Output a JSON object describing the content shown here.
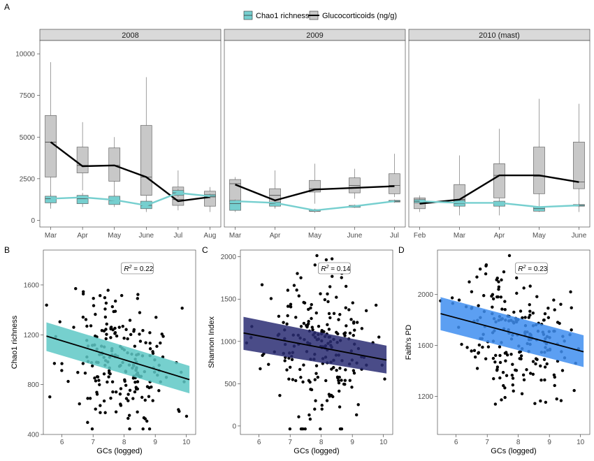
{
  "chart_data": [
    {
      "panel": "A",
      "type": "box",
      "legend": {
        "placement": "top-center",
        "entries": [
          {
            "label": "Chao1 richness",
            "color": "#76CFCF"
          },
          {
            "label": "Glucocorticoids (ng/g)",
            "color": "#C8C8C8"
          }
        ]
      },
      "ylim": [
        -400,
        10800
      ],
      "yticks": [
        0,
        2500,
        5000,
        7500,
        10000
      ],
      "facets": [
        {
          "title": "2008",
          "months": [
            "Mar",
            "Apr",
            "May",
            "June",
            "Jul",
            "Aug"
          ],
          "gc_boxes": [
            {
              "lo": 700,
              "q1": 2600,
              "med": 4700,
              "q3": 6300,
              "hi": 9500
            },
            {
              "lo": 1800,
              "q1": 2850,
              "med": 3300,
              "q3": 4400,
              "hi": 5900
            },
            {
              "lo": 1400,
              "q1": 2350,
              "med": 3300,
              "q3": 4350,
              "hi": 5000
            },
            {
              "lo": 500,
              "q1": 1500,
              "med": 2600,
              "q3": 5700,
              "hi": 8600
            },
            {
              "lo": 600,
              "q1": 900,
              "med": 1250,
              "q3": 2000,
              "hi": 3000
            },
            {
              "lo": 500,
              "q1": 850,
              "med": 1400,
              "q3": 1750,
              "hi": 2000
            }
          ],
          "gc_mean": [
            4700,
            3250,
            3300,
            2600,
            1150,
            1400
          ],
          "chao_boxes": [
            {
              "lo": 900,
              "q1": 1050,
              "med": 1300,
              "q3": 1450,
              "hi": 1600
            },
            {
              "lo": 800,
              "q1": 1000,
              "med": 1300,
              "q3": 1500,
              "hi": 1650
            },
            {
              "lo": 800,
              "q1": 950,
              "med": 1200,
              "q3": 1450,
              "hi": 1550
            },
            {
              "lo": 600,
              "q1": 700,
              "med": 900,
              "q3": 1150,
              "hi": 1250
            },
            {
              "lo": 1400,
              "q1": 1500,
              "med": 1650,
              "q3": 1800,
              "hi": 1900
            },
            {
              "lo": 1300,
              "q1": 1400,
              "med": 1450,
              "q3": 1550,
              "hi": 1600
            }
          ],
          "chao_mean": [
            1300,
            1380,
            1230,
            900,
            1650,
            1450
          ]
        },
        {
          "title": "2009",
          "months": [
            "Mar",
            "Apr",
            "May",
            "June",
            "Jul"
          ],
          "gc_boxes": [
            {
              "lo": 900,
              "q1": 1100,
              "med": 2200,
              "q3": 2450,
              "hi": 2600
            },
            {
              "lo": 700,
              "q1": 1050,
              "med": 1500,
              "q3": 1900,
              "hi": 3000
            },
            {
              "lo": 1000,
              "q1": 1700,
              "med": 1900,
              "q3": 2400,
              "hi": 3400
            },
            {
              "lo": 1300,
              "q1": 1650,
              "med": 2100,
              "q3": 2550,
              "hi": 3100
            },
            {
              "lo": 1400,
              "q1": 1600,
              "med": 2100,
              "q3": 2800,
              "hi": 4000
            }
          ],
          "gc_mean": [
            2150,
            1200,
            1850,
            1950,
            2050
          ],
          "chao_boxes": [
            {
              "lo": 500,
              "q1": 600,
              "med": 1000,
              "q3": 1200,
              "hi": 1250
            },
            {
              "lo": 750,
              "q1": 850,
              "med": 1000,
              "q3": 1100,
              "hi": 1200
            },
            {
              "lo": 450,
              "q1": 550,
              "med": 550,
              "q3": 650,
              "hi": 700
            },
            {
              "lo": 750,
              "q1": 780,
              "med": 850,
              "q3": 900,
              "hi": 950
            },
            {
              "lo": 1050,
              "q1": 1100,
              "med": 1150,
              "q3": 1200,
              "hi": 1250
            }
          ],
          "chao_mean": [
            1150,
            1050,
            600,
            850,
            1150
          ]
        },
        {
          "title": "2010 (mast)",
          "months": [
            "Feb",
            "Mar",
            "Apr",
            "May",
            "June"
          ],
          "gc_boxes": [
            {
              "lo": 500,
              "q1": 700,
              "med": 1200,
              "q3": 1350,
              "hi": 1500
            },
            {
              "lo": 300,
              "q1": 1100,
              "med": 1250,
              "q3": 2150,
              "hi": 3900
            },
            {
              "lo": 300,
              "q1": 1350,
              "med": 2700,
              "q3": 3400,
              "hi": 5500
            },
            {
              "lo": 900,
              "q1": 1600,
              "med": 2650,
              "q3": 4400,
              "hi": 7300
            },
            {
              "lo": 500,
              "q1": 1900,
              "med": 2300,
              "q3": 4700,
              "hi": 7000
            }
          ],
          "gc_mean": [
            1000,
            1250,
            2700,
            2700,
            2300
          ],
          "chao_boxes": [
            {
              "lo": 1000,
              "q1": 1050,
              "med": 1150,
              "q3": 1250,
              "hi": 1350
            },
            {
              "lo": 700,
              "q1": 850,
              "med": 1000,
              "q3": 1200,
              "hi": 1300
            },
            {
              "lo": 750,
              "q1": 850,
              "med": 1050,
              "q3": 1150,
              "hi": 1200
            },
            {
              "lo": 500,
              "q1": 550,
              "med": 700,
              "q3": 800,
              "hi": 900
            },
            {
              "lo": 800,
              "q1": 850,
              "med": 900,
              "q3": 950,
              "hi": 1000
            }
          ],
          "chao_mean": [
            1150,
            1050,
            1050,
            800,
            900
          ]
        }
      ]
    },
    {
      "panel": "B",
      "type": "scatter",
      "xlabel": "GCs (logged)",
      "ylabel": "Chao1 richness",
      "xlim": [
        5.4,
        10.3
      ],
      "ylim": [
        400,
        1880
      ],
      "xticks": [
        6,
        7,
        8,
        9,
        10
      ],
      "yticks": [
        400,
        800,
        1200,
        1600
      ],
      "annotation": "= 0.22",
      "fit": {
        "x0": 5.5,
        "x1": 10.1,
        "y0": 1190,
        "y1": 840
      },
      "band": {
        "upper0": 1300,
        "upper1": 950,
        "lower0": 1070,
        "lower1": 730
      },
      "band_color": "#5EC8C6",
      "n_points": 220,
      "seed": 11,
      "y_sd": 280
    },
    {
      "panel": "C",
      "type": "scatter",
      "xlabel": "GCs (logged)",
      "ylabel": "Shannon Index",
      "xlim": [
        5.4,
        10.3
      ],
      "ylim": [
        -100,
        2080
      ],
      "xticks": [
        6,
        7,
        8,
        9,
        10
      ],
      "yticks": [
        0,
        500,
        1000,
        1500,
        2000
      ],
      "annotation": "= 0.14",
      "fit": {
        "x0": 5.5,
        "x1": 10.1,
        "y0": 1100,
        "y1": 780
      },
      "band": {
        "upper0": 1290,
        "upper1": 950,
        "lower0": 900,
        "lower1": 620
      },
      "band_color": "#2A2D73",
      "n_points": 220,
      "seed": 23,
      "y_sd": 420
    },
    {
      "panel": "D",
      "type": "scatter",
      "xlabel": "GCs (logged)",
      "ylabel": "Faith's PD",
      "xlim": [
        5.4,
        10.3
      ],
      "ylim": [
        900,
        2350
      ],
      "xticks": [
        6,
        7,
        8,
        9,
        10
      ],
      "yticks": [
        1200,
        1600,
        2000
      ],
      "annotation": "= 0.23",
      "fit": {
        "x0": 5.5,
        "x1": 10.1,
        "y0": 1850,
        "y1": 1550
      },
      "band": {
        "upper0": 1980,
        "upper1": 1680,
        "lower0": 1720,
        "lower1": 1430
      },
      "band_color": "#3F8EF0",
      "n_points": 220,
      "seed": 37,
      "y_sd": 250
    }
  ]
}
